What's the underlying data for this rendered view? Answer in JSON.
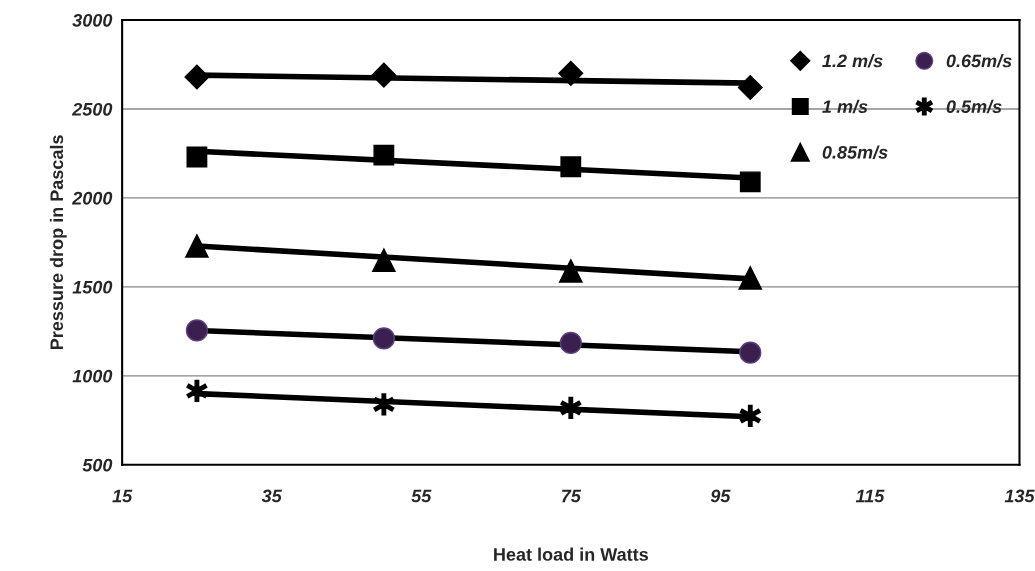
{
  "chart_data": {
    "type": "scatter",
    "xlabel": "Heat load in Watts",
    "ylabel": "Pressure drop in Pascals",
    "xlim": [
      15,
      135
    ],
    "xticks": [
      15,
      35,
      55,
      75,
      95,
      115,
      135
    ],
    "ylim": [
      500,
      3000
    ],
    "yticks": [
      500,
      1000,
      1500,
      2000,
      2500,
      3000
    ],
    "grid": "y",
    "legend": "top right",
    "series": [
      {
        "name": "1.2 m/s",
        "color": "#000000",
        "marker": "diamond",
        "x": [
          25,
          50,
          75,
          99
        ],
        "values": [
          2680,
          2690,
          2700,
          2620
        ]
      },
      {
        "name": "1 m/s",
        "color": "#000000",
        "marker": "square",
        "x": [
          25,
          50,
          75,
          99
        ],
        "values": [
          2230,
          2240,
          2175,
          2090
        ]
      },
      {
        "name": "0.85m/s",
        "color": "#000000",
        "marker": "triangle",
        "x": [
          25,
          50,
          75,
          99
        ],
        "values": [
          1730,
          1650,
          1590,
          1550
        ]
      },
      {
        "name": "0.65m/s",
        "color": "#3b1f4f",
        "marker": "circle",
        "x": [
          25,
          50,
          75,
          99
        ],
        "values": [
          1255,
          1210,
          1185,
          1130
        ]
      },
      {
        "name": "0.5m/s",
        "color": "#000000",
        "marker": "cross",
        "x": [
          25,
          50,
          75,
          99
        ],
        "values": [
          915,
          840,
          820,
          775
        ]
      },
      {
        "type": "line",
        "color": "#000000",
        "marker": "none",
        "x": [
          25,
          99
        ],
        "values": [
          2690,
          2645
        ]
      },
      {
        "type": "line",
        "color": "#000000",
        "marker": "none",
        "x": [
          25,
          99
        ],
        "values": [
          2262,
          2112
        ]
      },
      {
        "type": "line",
        "color": "#000000",
        "marker": "none",
        "x": [
          25,
          99
        ],
        "values": [
          1730,
          1545
        ]
      },
      {
        "type": "line",
        "color": "#000000",
        "marker": "none",
        "x": [
          25,
          99
        ],
        "values": [
          1255,
          1135
        ]
      },
      {
        "type": "line",
        "color": "#000000",
        "marker": "none",
        "x": [
          25,
          99
        ],
        "values": [
          900,
          770
        ]
      }
    ]
  }
}
